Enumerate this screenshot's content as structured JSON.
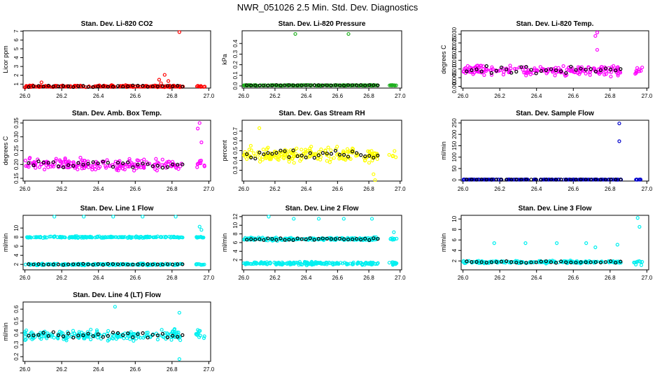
{
  "page_title": "NWR_051026  2.5 Min. Std. Dev. Diagnostics",
  "colors": {
    "red": "#ff0000",
    "green": "#1faf1f",
    "magenta": "#ff00ff",
    "yellow": "#ffff00",
    "blue": "#0000cc",
    "cyan": "#00f0f0",
    "black": "#000000"
  },
  "chart_data": [
    {
      "id": "co2",
      "type": "scatter",
      "title": "Stan. Dev. Li-820 CO2",
      "ylabel": "Licor ppm",
      "xlim": [
        25.99,
        27.01
      ],
      "ylim": [
        0.55,
        7.05
      ],
      "x_ticks": [
        "26.0",
        "26.2",
        "26.4",
        "26.6",
        "26.8",
        "27.0"
      ],
      "y_ticks": [
        "1",
        "2",
        "3",
        "4",
        "5",
        "6",
        "7"
      ],
      "color": "#ff0000",
      "base": 0.75,
      "spread": 0.15,
      "outliers": [
        [
          26.84,
          6.9
        ],
        [
          26.76,
          2.05
        ],
        [
          26.73,
          1.5
        ],
        [
          26.78,
          1.35
        ],
        [
          26.74,
          1.1
        ],
        [
          26.09,
          1.2
        ]
      ]
    },
    {
      "id": "pressure",
      "type": "scatter",
      "title": "Stan. Dev. Li-820 Pressure",
      "ylabel": "kPa",
      "xlim": [
        25.99,
        27.01
      ],
      "ylim": [
        -0.02,
        0.52
      ],
      "x_ticks": [
        "26.0",
        "26.2",
        "26.4",
        "26.6",
        "26.8",
        "27.0"
      ],
      "y_ticks": [
        "0.0",
        "0.1",
        "0.2",
        "0.3",
        "0.4"
      ],
      "color": "#1faf1f",
      "base": 0.006,
      "spread": 0.005,
      "outliers": [
        [
          26.33,
          0.49
        ],
        [
          26.67,
          0.49
        ]
      ]
    },
    {
      "id": "temp",
      "type": "scatter",
      "title": "Stan. Dev. Li-820 Temp.",
      "ylabel": "degrees C",
      "xlim": [
        25.99,
        27.01
      ],
      "ylim": [
        -0.001,
        0.032
      ],
      "x_ticks": [
        "26.0",
        "26.2",
        "26.4",
        "26.6",
        "26.8",
        "27.0"
      ],
      "y_ticks": [
        "0.000",
        "0.005",
        "0.010",
        "0.015",
        "0.020",
        "0.025",
        "0.030"
      ],
      "color": "#ff00ff",
      "base": 0.009,
      "spread": 0.004,
      "outliers": [
        [
          26.73,
          0.031
        ],
        [
          26.72,
          0.029
        ],
        [
          26.73,
          0.021
        ]
      ]
    },
    {
      "id": "boxtemp",
      "type": "scatter",
      "title": "Stan. Dev. Amb. Box Temp.",
      "ylabel": "degrees C",
      "xlim": [
        25.99,
        27.01
      ],
      "ylim": [
        0.14,
        0.36
      ],
      "x_ticks": [
        "26.0",
        "26.2",
        "26.4",
        "26.6",
        "26.8",
        "27.0"
      ],
      "y_ticks": [
        "0.15",
        "0.20",
        "0.25",
        "0.30",
        "0.35"
      ],
      "color": "#ff00ff",
      "base": 0.2,
      "spread": 0.03,
      "outliers": [
        [
          26.95,
          0.35
        ],
        [
          26.94,
          0.33
        ],
        [
          26.96,
          0.28
        ]
      ]
    },
    {
      "id": "rh",
      "type": "scatter",
      "title": "Stan. Dev. Gas Stream RH",
      "ylabel": "percent",
      "xlim": [
        25.99,
        27.01
      ],
      "ylim": [
        0.19,
        0.81
      ],
      "x_ticks": [
        "26.0",
        "26.2",
        "26.4",
        "26.6",
        "26.8",
        "27.0"
      ],
      "y_ticks": [
        "0.3",
        "0.4",
        "0.5",
        "0.6",
        "0.7"
      ],
      "color": "#ffff00",
      "base": 0.46,
      "spread": 0.1,
      "outliers": [
        [
          26.84,
          0.2
        ],
        [
          26.83,
          0.26
        ],
        [
          26.1,
          0.73
        ]
      ]
    },
    {
      "id": "sampleflow",
      "type": "scatter",
      "title": "Stan. Dev. Sample Flow",
      "ylabel": "ml/min",
      "xlim": [
        25.99,
        27.01
      ],
      "ylim": [
        -5,
        262
      ],
      "x_ticks": [
        "26.0",
        "26.2",
        "26.4",
        "26.6",
        "26.8",
        "27.0"
      ],
      "y_ticks": [
        "0",
        "50",
        "100",
        "150",
        "200",
        "250"
      ],
      "color": "#0000cc",
      "base": 1.5,
      "spread": 1,
      "outliers": [
        [
          26.85,
          248
        ],
        [
          26.85,
          170
        ]
      ]
    },
    {
      "id": "line1",
      "type": "scatter",
      "title": "Stan. Dev. Line 1 Flow",
      "ylabel": "ml/min",
      "xlim": [
        25.99,
        27.01
      ],
      "ylim": [
        0.8,
        12.8
      ],
      "x_ticks": [
        "26.0",
        "26.2",
        "26.4",
        "26.6",
        "26.8",
        "27.0"
      ],
      "y_ticks": [
        "2",
        "4",
        "6",
        "8",
        "10"
      ],
      "color": "#00f0f0",
      "bands": [
        8.0,
        2.0
      ],
      "spread": 0.25,
      "black_on_band": 1,
      "outliers": [
        [
          26.16,
          12.5
        ],
        [
          26.32,
          12.5
        ],
        [
          26.48,
          12.5
        ],
        [
          26.64,
          12.5
        ],
        [
          26.82,
          12.5
        ],
        [
          26.95,
          10.3
        ],
        [
          26.96,
          9.6
        ]
      ]
    },
    {
      "id": "line2",
      "type": "scatter",
      "title": "Stan. Dev. Line 2 Flow",
      "ylabel": "ml/min",
      "xlim": [
        25.99,
        27.01
      ],
      "ylim": [
        -0.3,
        12.3
      ],
      "x_ticks": [
        "26.0",
        "26.2",
        "26.4",
        "26.6",
        "26.8",
        "27.0"
      ],
      "y_ticks": [
        "2",
        "4",
        "6",
        "8",
        "10",
        "12"
      ],
      "color": "#00f0f0",
      "bands": [
        6.8,
        1.2
      ],
      "spread": 0.5,
      "black_on_band": 0,
      "outliers": [
        [
          26.16,
          12.0
        ],
        [
          26.32,
          11.5
        ],
        [
          26.48,
          11.5
        ],
        [
          26.64,
          11.5
        ],
        [
          26.82,
          11.5
        ],
        [
          26.96,
          8.4
        ]
      ]
    },
    {
      "id": "line3",
      "type": "scatter",
      "title": "Stan. Dev. Line 3 Flow",
      "ylabel": "ml/min",
      "xlim": [
        25.99,
        27.01
      ],
      "ylim": [
        0.3,
        10.7
      ],
      "x_ticks": [
        "26.0",
        "26.2",
        "26.4",
        "26.6",
        "26.8",
        "27.0"
      ],
      "y_ticks": [
        "2",
        "4",
        "6",
        "8",
        "10"
      ],
      "color": "#00f0f0",
      "bands": [
        1.8
      ],
      "spread": 0.35,
      "black_on_band": 0,
      "outliers": [
        [
          26.17,
          5.4
        ],
        [
          26.34,
          5.4
        ],
        [
          26.51,
          5.4
        ],
        [
          26.67,
          5.4
        ],
        [
          26.72,
          4.6
        ],
        [
          26.84,
          5.1
        ],
        [
          26.95,
          10.2
        ],
        [
          26.96,
          8.5
        ],
        [
          26.97,
          1.2
        ],
        [
          26.94,
          1.3
        ]
      ]
    },
    {
      "id": "line4",
      "type": "scatter",
      "title": "Stan. Dev. Line 4 (LT) Flow",
      "ylabel": "ml/min",
      "xlim": [
        25.99,
        27.01
      ],
      "ylim": [
        0.16,
        0.66
      ],
      "x_ticks": [
        "26.0",
        "26.2",
        "26.4",
        "26.6",
        "26.8",
        "27.0"
      ],
      "y_ticks": [
        "0.2",
        "0.3",
        "0.4",
        "0.5",
        "0.6"
      ],
      "color": "#00f0f0",
      "base": 0.38,
      "spread": 0.06,
      "outliers": [
        [
          26.49,
          0.62
        ],
        [
          26.84,
          0.57
        ],
        [
          26.84,
          0.18
        ]
      ]
    }
  ]
}
